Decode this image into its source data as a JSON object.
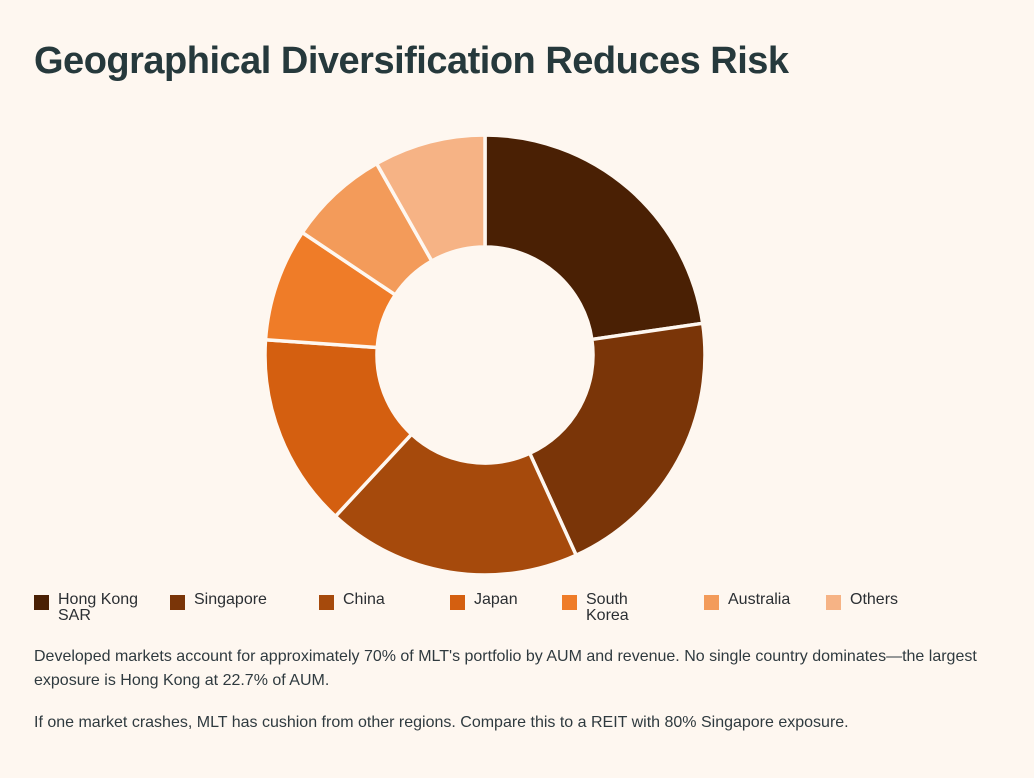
{
  "page": {
    "title": "Geographical Diversification Reduces Risk",
    "notes": [
      "Developed markets account for approximately 70% of MLT's portfolio by AUM and revenue. No single country dominates—the largest exposure is Hong Kong at 22.7% of AUM.",
      "If one market crashes, MLT has cushion from other regions. Compare this to a REIT with 80% Singapore exposure."
    ]
  },
  "chart_data": {
    "type": "pie",
    "donut": true,
    "title": "",
    "legend_position": "bottom",
    "categories": [
      "Hong Kong SAR",
      "Singapore",
      "China",
      "Japan",
      "South Korea",
      "Australia",
      "Others"
    ],
    "values": [
      22.7,
      20.5,
      18.7,
      14.2,
      8.3,
      7.4,
      8.2
    ],
    "colors": [
      "#4a2004",
      "#7a3508",
      "#a64a0c",
      "#d45f10",
      "#ef7c28",
      "#f39b5a",
      "#f6b385"
    ]
  }
}
